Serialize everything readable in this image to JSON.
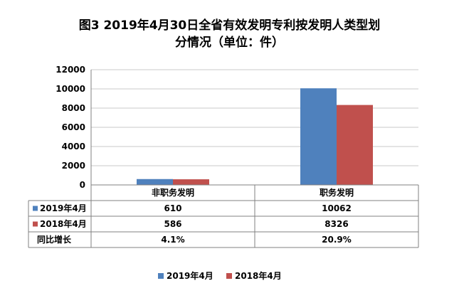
{
  "chart_data": {
    "type": "bar",
    "title": "图3 2019年4月30日全省有效发明专利按发明人类型划分情况（单位：件）",
    "title_lines": [
      "图3  2019年4月30日全省有效发明专利按发明人类型划",
      "分情况（单位：件）"
    ],
    "categories": [
      "非职务发明",
      "职务发明"
    ],
    "series": [
      {
        "name": "2019年4月",
        "values": [
          610,
          10062
        ],
        "color": "#4f81bd"
      },
      {
        "name": "2018年4月",
        "values": [
          586,
          8326
        ],
        "color": "#c0504d"
      }
    ],
    "yticks": [
      "0",
      "2000",
      "4000",
      "6000",
      "8000",
      "10000",
      "12000"
    ],
    "ylim": [
      0,
      12000
    ],
    "grid": true,
    "legend": "bottom",
    "table": {
      "display_values": [
        [
          "610",
          "10062"
        ],
        [
          "586",
          "8326"
        ]
      ],
      "growth_label": "同比增长",
      "growth": [
        "4.1%",
        "20.9%"
      ]
    }
  }
}
